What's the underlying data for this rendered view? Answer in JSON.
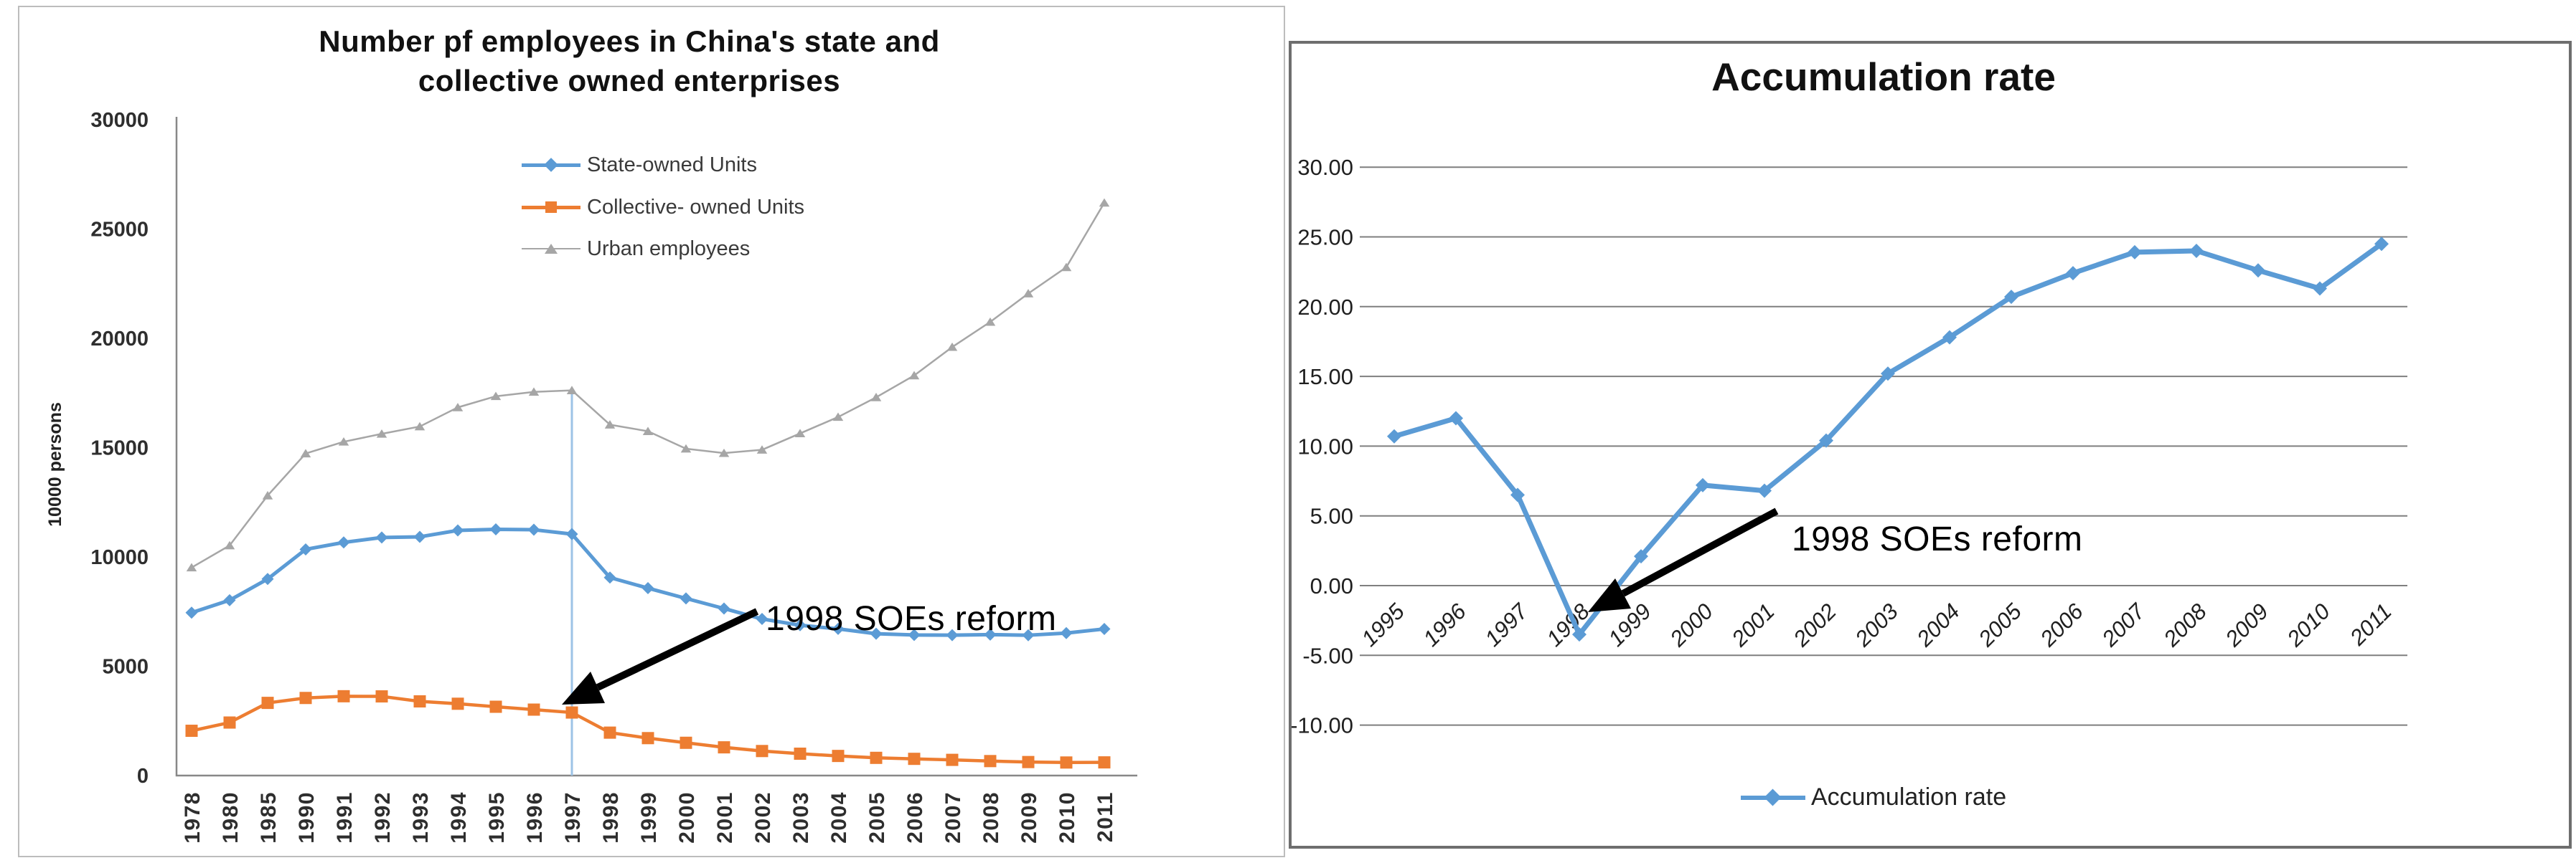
{
  "chart_data": [
    {
      "type": "line",
      "title": "Number pf employees in China's  state and collective owned enterprises",
      "title_lines": [
        "Number pf employees in China's  state and",
        "collective owned enterprises"
      ],
      "ylabel": "10000 persons",
      "xlabel": "",
      "ylim": [
        0,
        30000
      ],
      "yticks": [
        0,
        5000,
        10000,
        15000,
        20000,
        25000,
        30000
      ],
      "grid": false,
      "legend_position": "top-center-stacked",
      "categories": [
        "1978",
        "1980",
        "1985",
        "1990",
        "1991",
        "1992",
        "1993",
        "1994",
        "1995",
        "1996",
        "1997",
        "1998",
        "1999",
        "2000",
        "2001",
        "2002",
        "2003",
        "2004",
        "2005",
        "2006",
        "2007",
        "2008",
        "2009",
        "2010",
        "2011"
      ],
      "series": [
        {
          "name": "State-owned Units",
          "color": "#5B9BD5",
          "marker": "diamond",
          "values": [
            7451,
            8019,
            8990,
            10346,
            10664,
            10889,
            10920,
            11214,
            11261,
            11244,
            11044,
            9058,
            8572,
            8102,
            7640,
            7163,
            6876,
            6710,
            6488,
            6430,
            6424,
            6447,
            6420,
            6516,
            6704
          ]
        },
        {
          "name": "Collective- owned Units",
          "color": "#ED7D31",
          "marker": "square",
          "values": [
            2048,
            2425,
            3324,
            3549,
            3628,
            3621,
            3393,
            3285,
            3147,
            3016,
            2883,
            1963,
            1712,
            1499,
            1291,
            1122,
            1000,
            897,
            810,
            764,
            718,
            662,
            618,
            597,
            603
          ]
        },
        {
          "name": "Urban employees",
          "color": "#A6A6A6",
          "marker": "triangle",
          "values": [
            9514,
            10525,
            12808,
            14730,
            15268,
            15630,
            15965,
            16840,
            17350,
            17550,
            17620,
            16050,
            15750,
            14950,
            14750,
            14900,
            15650,
            16400,
            17300,
            18300,
            19600,
            20750,
            22050,
            23250,
            26200
          ]
        }
      ],
      "annotation": {
        "text": "1998 SOEs reform",
        "arrow_points_to_year": "1997"
      },
      "highlight": {
        "year": "1997",
        "vline_color": "#9DC3E6"
      }
    },
    {
      "type": "line",
      "title": "Accumulation rate",
      "xlabel": "",
      "ylim": [
        -10,
        30
      ],
      "yticks": [
        -10,
        -5,
        0,
        5,
        10,
        15,
        20,
        25,
        30
      ],
      "ytick_labels": [
        "-10.00",
        "-5.00",
        "0.00",
        "5.00",
        "10.00",
        "15.00",
        "20.00",
        "25.00",
        "30.00"
      ],
      "grid": true,
      "legend_position": "bottom-center",
      "categories": [
        "1995",
        "1996",
        "1997",
        "1998",
        "1999",
        "2000",
        "2001",
        "2002",
        "2003",
        "2004",
        "2005",
        "2006",
        "2007",
        "2008",
        "2009",
        "2010",
        "2011"
      ],
      "series": [
        {
          "name": "Accumulation rate",
          "color": "#5B9BD5",
          "marker": "diamond",
          "values": [
            10.7,
            12.0,
            6.5,
            -3.5,
            2.1,
            7.2,
            6.8,
            10.4,
            15.2,
            17.8,
            20.7,
            22.4,
            23.9,
            24.0,
            22.6,
            21.3,
            24.5
          ]
        }
      ],
      "annotation": {
        "text": "1998 SOEs reform",
        "arrow_points_to_year": "1998"
      }
    }
  ]
}
